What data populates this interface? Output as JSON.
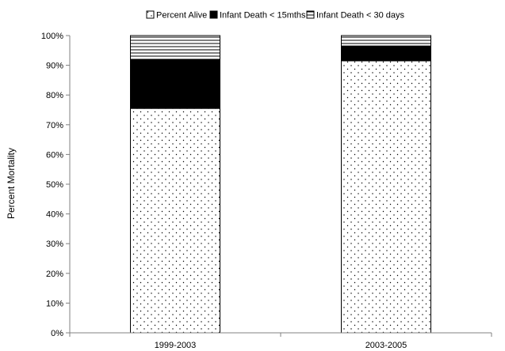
{
  "chart_data": {
    "type": "bar",
    "stacked": true,
    "percent_stacked": true,
    "categories": [
      "1999-2003",
      "2003-2005"
    ],
    "series": [
      {
        "name": "Percent Alive",
        "values": [
          75.5,
          91.5
        ],
        "pattern": "dots"
      },
      {
        "name": "Infant Death < 15mths",
        "values": [
          16.5,
          5.0
        ],
        "pattern": "solid"
      },
      {
        "name": "Infant Death < 30 days",
        "values": [
          8.0,
          3.5
        ],
        "pattern": "horizontal-lines"
      }
    ],
    "ylabel": "Percent Mortality",
    "xlabel": "",
    "ylim": [
      0,
      100
    ],
    "yticks": [
      "0%",
      "10%",
      "20%",
      "30%",
      "40%",
      "50%",
      "60%",
      "70%",
      "80%",
      "90%",
      "100%"
    ],
    "grid": false,
    "legend_position": "top",
    "colors": {
      "fill": "#000000",
      "background": "#ffffff",
      "axis": "#808080"
    }
  }
}
